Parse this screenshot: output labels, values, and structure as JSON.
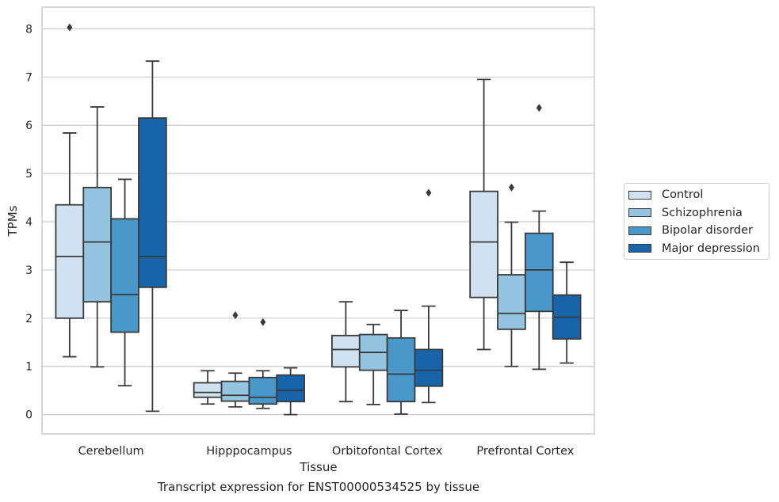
{
  "chart_data": {
    "type": "box",
    "xlabel": "Tissue",
    "ylabel": "TPMs",
    "ylim": [
      -0.4,
      8.45
    ],
    "yticks": [
      0,
      1,
      2,
      3,
      4,
      5,
      6,
      7,
      8
    ],
    "grid": "horizontal",
    "legend_position": "right",
    "categories": [
      "Cerebellum",
      "Hipppocampus",
      "Orbitofontal Cortex",
      "Prefrontal Cortex"
    ],
    "series": [
      {
        "name": "Control",
        "color": "#d0e1f2",
        "boxes": [
          {
            "min": 1.2,
            "q1": 2.0,
            "median": 3.28,
            "q3": 4.35,
            "max": 5.84,
            "outliers": [
              8.03
            ]
          },
          {
            "min": 0.22,
            "q1": 0.36,
            "median": 0.46,
            "q3": 0.66,
            "max": 0.91,
            "outliers": []
          },
          {
            "min": 0.27,
            "q1": 0.99,
            "median": 1.35,
            "q3": 1.64,
            "max": 2.34,
            "outliers": []
          },
          {
            "min": 1.35,
            "q1": 2.43,
            "median": 3.58,
            "q3": 4.63,
            "max": 6.95,
            "outliers": []
          }
        ]
      },
      {
        "name": "Schizophrenia",
        "color": "#94c4df",
        "boxes": [
          {
            "min": 0.99,
            "q1": 2.34,
            "median": 3.58,
            "q3": 4.71,
            "max": 6.38,
            "outliers": []
          },
          {
            "min": 0.16,
            "q1": 0.28,
            "median": 0.4,
            "q3": 0.69,
            "max": 0.86,
            "outliers": [
              2.06
            ]
          },
          {
            "min": 0.21,
            "q1": 0.92,
            "median": 1.29,
            "q3": 1.66,
            "max": 1.87,
            "outliers": []
          },
          {
            "min": 1.0,
            "q1": 1.77,
            "median": 2.1,
            "q3": 2.9,
            "max": 3.99,
            "outliers": [
              4.71
            ]
          }
        ]
      },
      {
        "name": "Bipolar disorder",
        "color": "#4a98c9",
        "boxes": [
          {
            "min": 0.6,
            "q1": 1.71,
            "median": 2.49,
            "q3": 4.06,
            "max": 4.88,
            "outliers": []
          },
          {
            "min": 0.13,
            "q1": 0.22,
            "median": 0.36,
            "q3": 0.77,
            "max": 0.91,
            "outliers": [
              1.92
            ]
          },
          {
            "min": 0.01,
            "q1": 0.27,
            "median": 0.84,
            "q3": 1.59,
            "max": 2.16,
            "outliers": []
          },
          {
            "min": 0.94,
            "q1": 2.14,
            "median": 3.0,
            "q3": 3.76,
            "max": 4.22,
            "outliers": [
              6.36
            ]
          }
        ]
      },
      {
        "name": "Major depression",
        "color": "#1764ab",
        "boxes": [
          {
            "min": 0.07,
            "q1": 2.64,
            "median": 3.28,
            "q3": 6.15,
            "max": 7.33,
            "outliers": []
          },
          {
            "min": 0.0,
            "q1": 0.27,
            "median": 0.5,
            "q3": 0.82,
            "max": 0.97,
            "outliers": []
          },
          {
            "min": 0.25,
            "q1": 0.59,
            "median": 0.92,
            "q3": 1.35,
            "max": 2.25,
            "outliers": [
              4.6
            ]
          },
          {
            "min": 1.07,
            "q1": 1.57,
            "median": 2.02,
            "q3": 2.48,
            "max": 3.16,
            "outliers": []
          }
        ]
      }
    ]
  },
  "caption": "Transcript expression for ENST00000534525 by tissue"
}
